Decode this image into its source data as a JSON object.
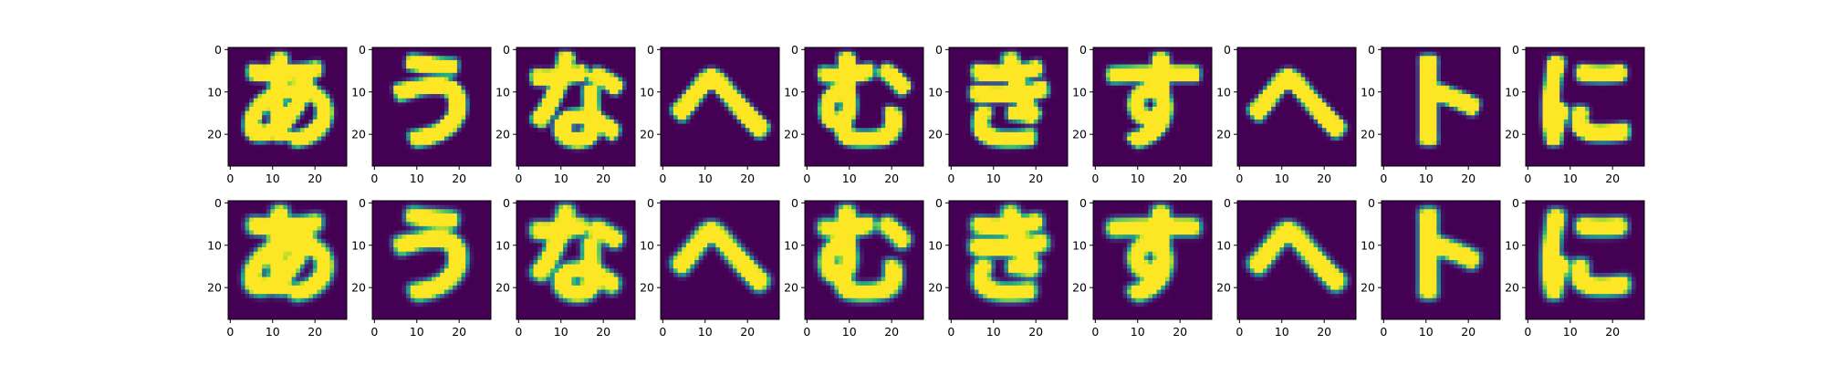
{
  "chart_data": {
    "type": "heatmap",
    "description_kind": "image-grid",
    "colormap": "viridis",
    "layout": {
      "rows": 2,
      "cols": 10
    },
    "image_size": [
      28,
      28
    ],
    "x_ticks": [
      "0",
      "10",
      "20"
    ],
    "y_ticks": [
      "0",
      "10",
      "20"
    ],
    "x_tick_values": [
      0,
      10,
      20
    ],
    "y_tick_values": [
      0,
      10,
      20
    ],
    "grid": false,
    "legend": "none",
    "title": "",
    "xlabel": "",
    "ylabel": "",
    "row_labels": [
      "",
      ""
    ],
    "panel_glyphs": [
      "あ",
      "う",
      "な",
      "へ",
      "む",
      "き",
      "す",
      "へ",
      "ト",
      "に"
    ],
    "row_style": [
      {
        "stroke_width": 2.6,
        "blur": 0.55,
        "intensity": 1.0
      },
      {
        "stroke_width": 2.5,
        "blur": 0.75,
        "intensity": 0.96
      }
    ]
  },
  "colors": {
    "viridis_low": "#440154",
    "viridis_high": "#fde725",
    "axes": "#000000"
  }
}
